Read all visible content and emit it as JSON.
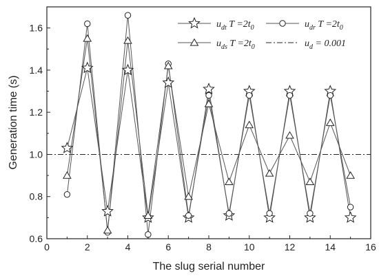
{
  "chart_data": {
    "type": "line",
    "xlabel": "The slug serial number",
    "ylabel": "Generation time (s)",
    "xlim": [
      0,
      16
    ],
    "ylim": [
      0.6,
      1.7
    ],
    "x_ticks": [
      "0",
      "2",
      "4",
      "6",
      "8",
      "10",
      "12",
      "14",
      "16"
    ],
    "y_ticks": [
      "0.6",
      "0.8",
      "1.0",
      "1.2",
      "1.4",
      "1.6"
    ],
    "grid": false,
    "legend_position": "top-right",
    "x": [
      1,
      2,
      3,
      4,
      5,
      6,
      7,
      8,
      9,
      10,
      11,
      12,
      13,
      14,
      15
    ],
    "series": [
      {
        "key": "udt",
        "name": "u_dt T = 2t_0",
        "legend": {
          "main": "u",
          "sub": "dt",
          "mid": " T =2t",
          "tail": "0"
        },
        "marker": "star",
        "values": [
          1.03,
          1.41,
          0.73,
          1.4,
          0.7,
          1.34,
          0.7,
          1.31,
          0.71,
          1.3,
          0.7,
          1.3,
          0.7,
          1.3,
          0.7
        ]
      },
      {
        "key": "udr",
        "name": "u_dr T = 2t_0",
        "legend": {
          "main": "u",
          "sub": "dr",
          "mid": " T =2t",
          "tail": "0"
        },
        "marker": "circle",
        "values": [
          0.81,
          1.62,
          0.63,
          1.66,
          0.62,
          1.43,
          0.71,
          1.28,
          0.72,
          1.28,
          0.72,
          1.28,
          0.72,
          1.28,
          0.75
        ]
      },
      {
        "key": "uds",
        "name": "u_ds T = 2t_0",
        "legend": {
          "main": "u",
          "sub": "ds",
          "mid": " T =2t",
          "tail": "0"
        },
        "marker": "triangle",
        "values": [
          0.9,
          1.55,
          0.64,
          1.54,
          0.71,
          1.42,
          0.8,
          1.24,
          0.87,
          1.14,
          0.91,
          1.09,
          0.87,
          1.15,
          0.9
        ]
      }
    ],
    "reference_line": {
      "y": 1.0,
      "style": "dash-dot",
      "legend": {
        "main": "u",
        "sub": "d",
        "mid": " = 0.001",
        "tail": ""
      }
    }
  }
}
